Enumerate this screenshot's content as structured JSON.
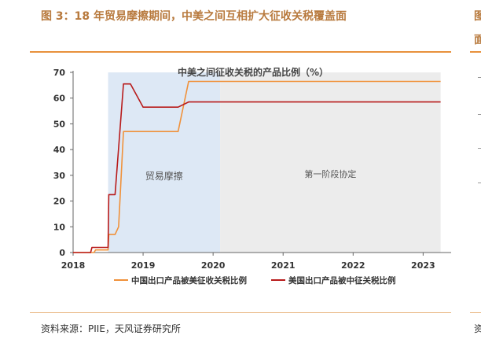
{
  "figure_title": "图 3：18 年贸易摩擦期间，中美之间互相扩大征收关税覆盖面",
  "side_title": "图",
  "side_subtitle": "面",
  "source_text": "资料来源：PIIE，天风证券研究所",
  "side_source": "资",
  "colors": {
    "orange": "#f0913a",
    "red": "#b81b1b",
    "blue_region": "#dde8f5",
    "grey_region": "#ececec",
    "accent": "#e8913c"
  },
  "chart_data": {
    "type": "line",
    "title": "中美之间征收关税的产品比例（%）",
    "xlim": [
      2018,
      2023.4
    ],
    "ylim": [
      0,
      70
    ],
    "x_ticks": [
      "2018",
      "2019",
      "2020",
      "2021",
      "2022",
      "2023"
    ],
    "y_ticks": [
      "0",
      "10",
      "20",
      "30",
      "40",
      "50",
      "60",
      "70"
    ],
    "regions": [
      {
        "label": "贸易摩擦",
        "x_start": 2018.5,
        "x_end": 2020.1
      },
      {
        "label": "第一阶段协定",
        "x_start": 2020.1,
        "x_end": 2023.25
      }
    ],
    "series": [
      {
        "name": "中国出口产品被美征收关税比例",
        "color": "orange",
        "points": [
          [
            2018.0,
            0
          ],
          [
            2018.3,
            0
          ],
          [
            2018.32,
            1
          ],
          [
            2018.5,
            1
          ],
          [
            2018.51,
            7
          ],
          [
            2018.6,
            7
          ],
          [
            2018.65,
            10
          ],
          [
            2018.72,
            47
          ],
          [
            2019.5,
            47
          ],
          [
            2019.65,
            66.5
          ],
          [
            2023.25,
            66.5
          ]
        ]
      },
      {
        "name": "美国出口产品被中征关税比例",
        "color": "red",
        "points": [
          [
            2018.0,
            0
          ],
          [
            2018.25,
            0
          ],
          [
            2018.27,
            2
          ],
          [
            2018.5,
            2
          ],
          [
            2018.51,
            22.5
          ],
          [
            2018.6,
            22.5
          ],
          [
            2018.72,
            65.5
          ],
          [
            2018.82,
            65.5
          ],
          [
            2019.0,
            56.5
          ],
          [
            2019.5,
            56.5
          ],
          [
            2019.65,
            58.5
          ],
          [
            2023.25,
            58.5
          ]
        ]
      }
    ],
    "legend_position": "bottom"
  }
}
